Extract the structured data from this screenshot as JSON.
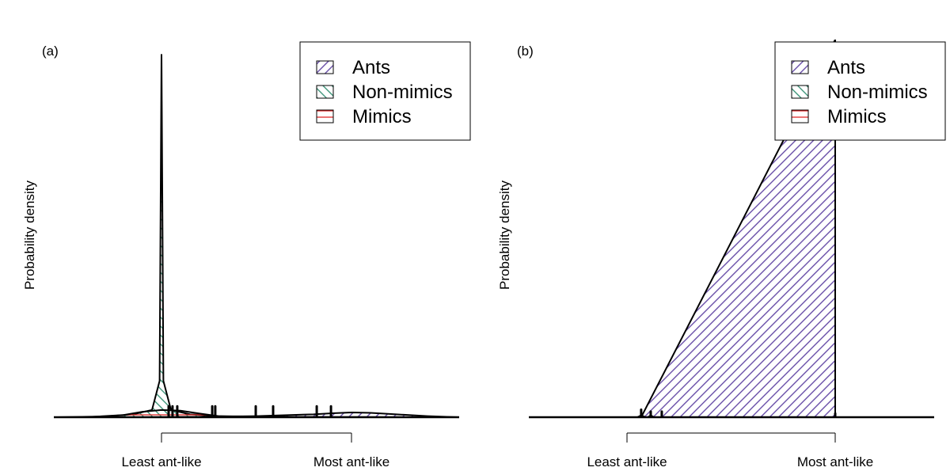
{
  "chart_data": [
    {
      "type": "density",
      "panel_label": "(a)",
      "ylabel": "Probability density",
      "xlim": [
        -0.567,
        1.567
      ],
      "ylim": [
        0,
        1.04
      ],
      "xticks": [
        {
          "value": 0,
          "label": "Least ant-like"
        },
        {
          "value": 1,
          "label": "Most ant-like"
        }
      ],
      "legend": "top-right",
      "series": [
        {
          "name": "Ants",
          "color": "#5b3fa0",
          "hatch": -45,
          "x": [
            -0.1,
            0.2,
            0.5,
            0.8,
            0.9,
            1.0,
            1.1,
            1.2,
            1.4,
            1.56
          ],
          "values": [
            0,
            0.001,
            0.003,
            0.008,
            0.011,
            0.013,
            0.012,
            0.009,
            0.003,
            0
          ]
        },
        {
          "name": "Non-mimics",
          "color": "#2e8b6e",
          "hatch": 45,
          "x": [
            -0.55,
            -0.3,
            -0.15,
            -0.05,
            -0.01,
            0,
            0.01,
            0.05,
            0.15,
            0.3,
            0.6,
            1.3
          ],
          "values": [
            0,
            0.002,
            0.008,
            0.02,
            0.1,
            1.0,
            0.1,
            0.02,
            0.008,
            0.003,
            0.001,
            0
          ]
        },
        {
          "name": "Mimics",
          "color": "#e02828",
          "hatch": 0,
          "x": [
            -0.4,
            -0.2,
            -0.1,
            0,
            0.1,
            0.2,
            0.3,
            0.4,
            0.5
          ],
          "values": [
            0,
            0.006,
            0.015,
            0.02,
            0.018,
            0.01,
            0.003,
            0.001,
            0
          ]
        }
      ],
      "spikes": {
        "x": [
          0.0375,
          0.058,
          0.083,
          0.267,
          0.283,
          0.496,
          0.5875,
          0.817,
          0.892
        ],
        "values": [
          0.03,
          0.03,
          0.03,
          0.03,
          0.03,
          0.03,
          0.03,
          0.03,
          0.03
        ]
      }
    },
    {
      "type": "density",
      "panel_label": "(b)",
      "ylabel": "Probability density",
      "xlim": [
        -0.471,
        1.475
      ],
      "ylim": [
        0,
        1
      ],
      "xticks": [
        {
          "value": 0,
          "label": "Least ant-like"
        },
        {
          "value": 1,
          "label": "Most ant-like"
        }
      ],
      "legend": "top-right",
      "series": [
        {
          "name": "Ants",
          "color": "#5b3fa0",
          "hatch": -45,
          "x": [
            -0.47,
            0.068,
            1.0,
            1.0,
            1.47
          ],
          "values": [
            0,
            0,
            1,
            0,
            0
          ]
        },
        {
          "name": "Non-mimics",
          "color": "#2e8b6e",
          "hatch": 45,
          "x": [
            0.05,
            0.068,
            0.09
          ],
          "values": [
            0,
            0.005,
            0
          ]
        },
        {
          "name": "Mimics",
          "color": "#e02828",
          "hatch": 0,
          "x": [
            0.1,
            0.114,
            0.13
          ],
          "values": [
            0,
            0.005,
            0
          ]
        }
      ],
      "spikes": {
        "x": [
          0.068,
          0.114,
          0.167,
          1.0
        ],
        "values": [
          0.02,
          0.015,
          0.015,
          0.01
        ]
      }
    }
  ]
}
